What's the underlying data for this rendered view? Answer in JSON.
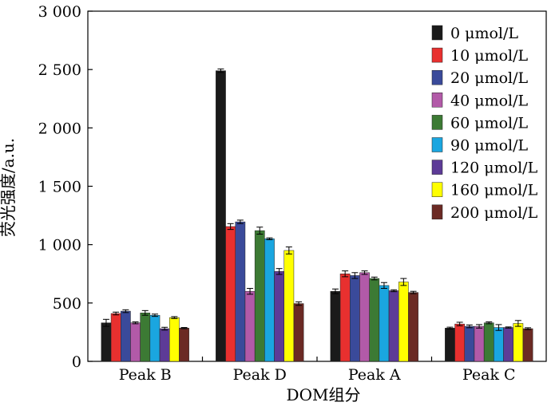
{
  "chart_data": {
    "type": "bar",
    "categories": [
      "Peak B",
      "Peak D",
      "Peak A",
      "Peak C"
    ],
    "ylim": [
      0,
      3000
    ],
    "yticks": [
      0,
      500,
      1000,
      1500,
      2000,
      2500,
      3000
    ],
    "ytick_labels": [
      "0",
      "500",
      "1 000",
      "1 500",
      "2 000",
      "2 500",
      "3 000"
    ],
    "xlabel": "DOM组分",
    "ylabel": "荧光强度/a.u.",
    "legend_position": "top-right",
    "grid": false,
    "error_bars": true,
    "series": [
      {
        "name": "0 μmol/L",
        "color": "#1a1a1a",
        "values": [
          330,
          2490,
          600,
          285
        ],
        "errors": [
          30,
          15,
          20,
          8
        ]
      },
      {
        "name": "10 μmol/L",
        "color": "#e8302f",
        "values": [
          410,
          1155,
          750,
          320
        ],
        "errors": [
          12,
          25,
          25,
          15
        ]
      },
      {
        "name": "20 μmol/L",
        "color": "#3a4a9a",
        "values": [
          430,
          1195,
          735,
          300
        ],
        "errors": [
          12,
          15,
          25,
          12
        ]
      },
      {
        "name": "40 μmol/L",
        "color": "#b25aa8",
        "values": [
          330,
          600,
          760,
          300
        ],
        "errors": [
          8,
          25,
          15,
          15
        ]
      },
      {
        "name": "60 μmol/L",
        "color": "#3c7a34",
        "values": [
          415,
          1120,
          710,
          330
        ],
        "errors": [
          20,
          30,
          12,
          8
        ]
      },
      {
        "name": "90 μmol/L",
        "color": "#1aa6e0",
        "values": [
          395,
          1050,
          650,
          290
        ],
        "errors": [
          10,
          8,
          25,
          25
        ]
      },
      {
        "name": "120 μmol/L",
        "color": "#5d3b97",
        "values": [
          280,
          770,
          605,
          290
        ],
        "errors": [
          12,
          25,
          8,
          5
        ]
      },
      {
        "name": "160 μmol/L",
        "color": "#ffff00",
        "values": [
          375,
          950,
          680,
          325
        ],
        "errors": [
          8,
          30,
          30,
          25
        ]
      },
      {
        "name": "200 μmol/L",
        "color": "#6b2a24",
        "values": [
          285,
          495,
          590,
          280
        ],
        "errors": [
          5,
          15,
          10,
          8
        ]
      }
    ]
  }
}
